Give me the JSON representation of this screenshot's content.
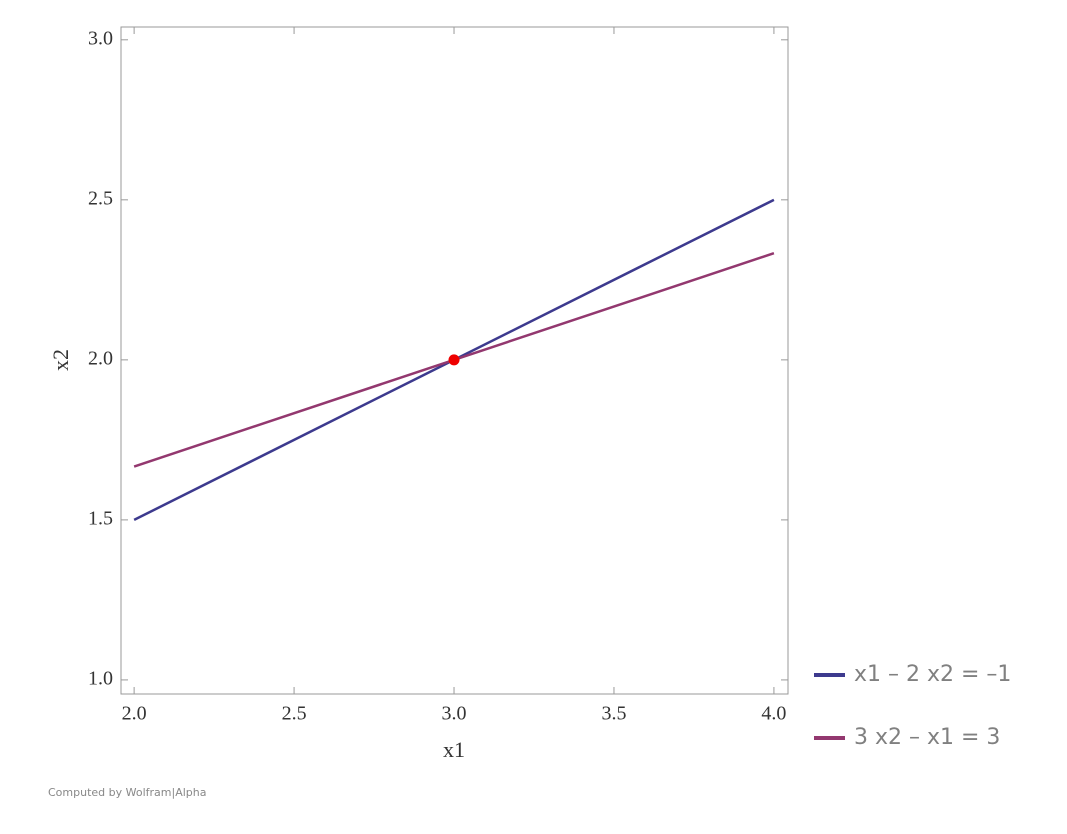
{
  "chart_data": {
    "type": "line",
    "x": [
      2,
      4
    ],
    "series": [
      {
        "name": "x1 – 2 x2 = –1",
        "color": "#3d3a8e",
        "values": [
          1.5,
          2.5
        ]
      },
      {
        "name": "3 x2 – x1 = 3",
        "color": "#93386f",
        "values": [
          1.6667,
          2.3333
        ]
      }
    ],
    "points": {
      "x": [
        3
      ],
      "y": [
        2
      ],
      "color": "#ee0000"
    },
    "xlabel": "x1",
    "ylabel": "x2",
    "xlim": [
      1.959,
      4.044
    ],
    "ylim": [
      0.956,
      3.04
    ],
    "xticks": [
      {
        "value": 2,
        "label": "2.0"
      },
      {
        "value": 2.5,
        "label": "2.5"
      },
      {
        "value": 3,
        "label": "3.0"
      },
      {
        "value": 3.5,
        "label": "3.5"
      },
      {
        "value": 4,
        "label": "4.0"
      }
    ],
    "yticks": [
      {
        "value": 1,
        "label": "1.0"
      },
      {
        "value": 1.5,
        "label": "1.5"
      },
      {
        "value": 2,
        "label": "2.0"
      },
      {
        "value": 2.5,
        "label": "2.5"
      },
      {
        "value": 3,
        "label": "3.0"
      }
    ],
    "legend": "right"
  },
  "footer": "Computed by Wolfram|Alpha"
}
